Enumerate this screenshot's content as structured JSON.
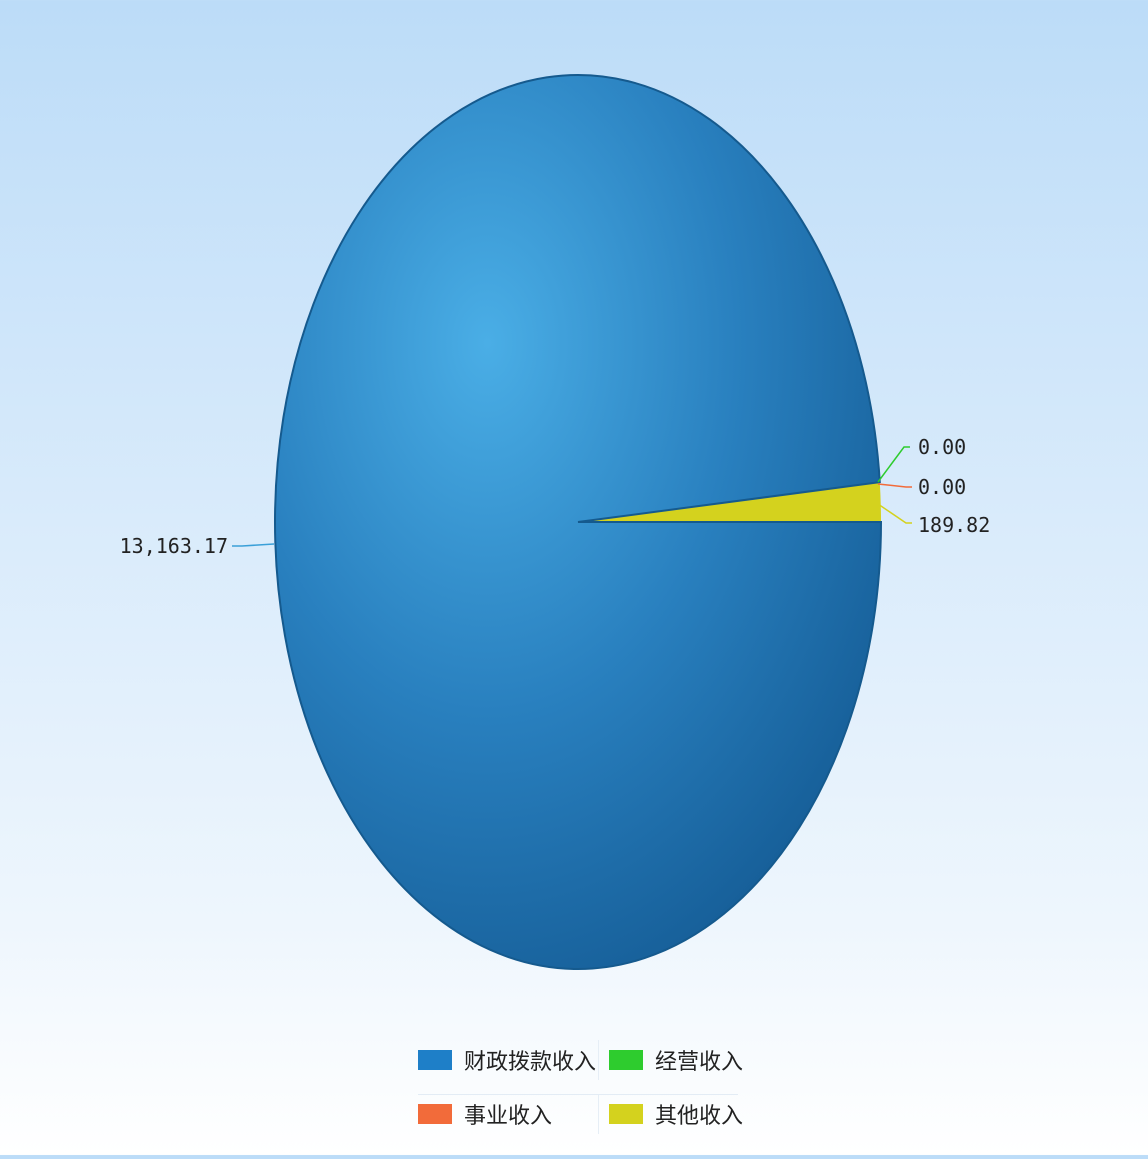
{
  "chart_data": {
    "type": "pie",
    "series": [
      {
        "name": "财政拨款收入",
        "value": 13163.17,
        "label": "13,163.17",
        "color": "#1e7fc8"
      },
      {
        "name": "事业收入",
        "value": 0.0,
        "label": "0.00",
        "color": "#f26b3a"
      },
      {
        "name": "经营收入",
        "value": 0.0,
        "label": "0.00",
        "color": "#2ecc2e"
      },
      {
        "name": "其他收入",
        "value": 189.82,
        "label": "189.82",
        "color": "#d4d21e"
      }
    ],
    "legend_position": "bottom"
  }
}
